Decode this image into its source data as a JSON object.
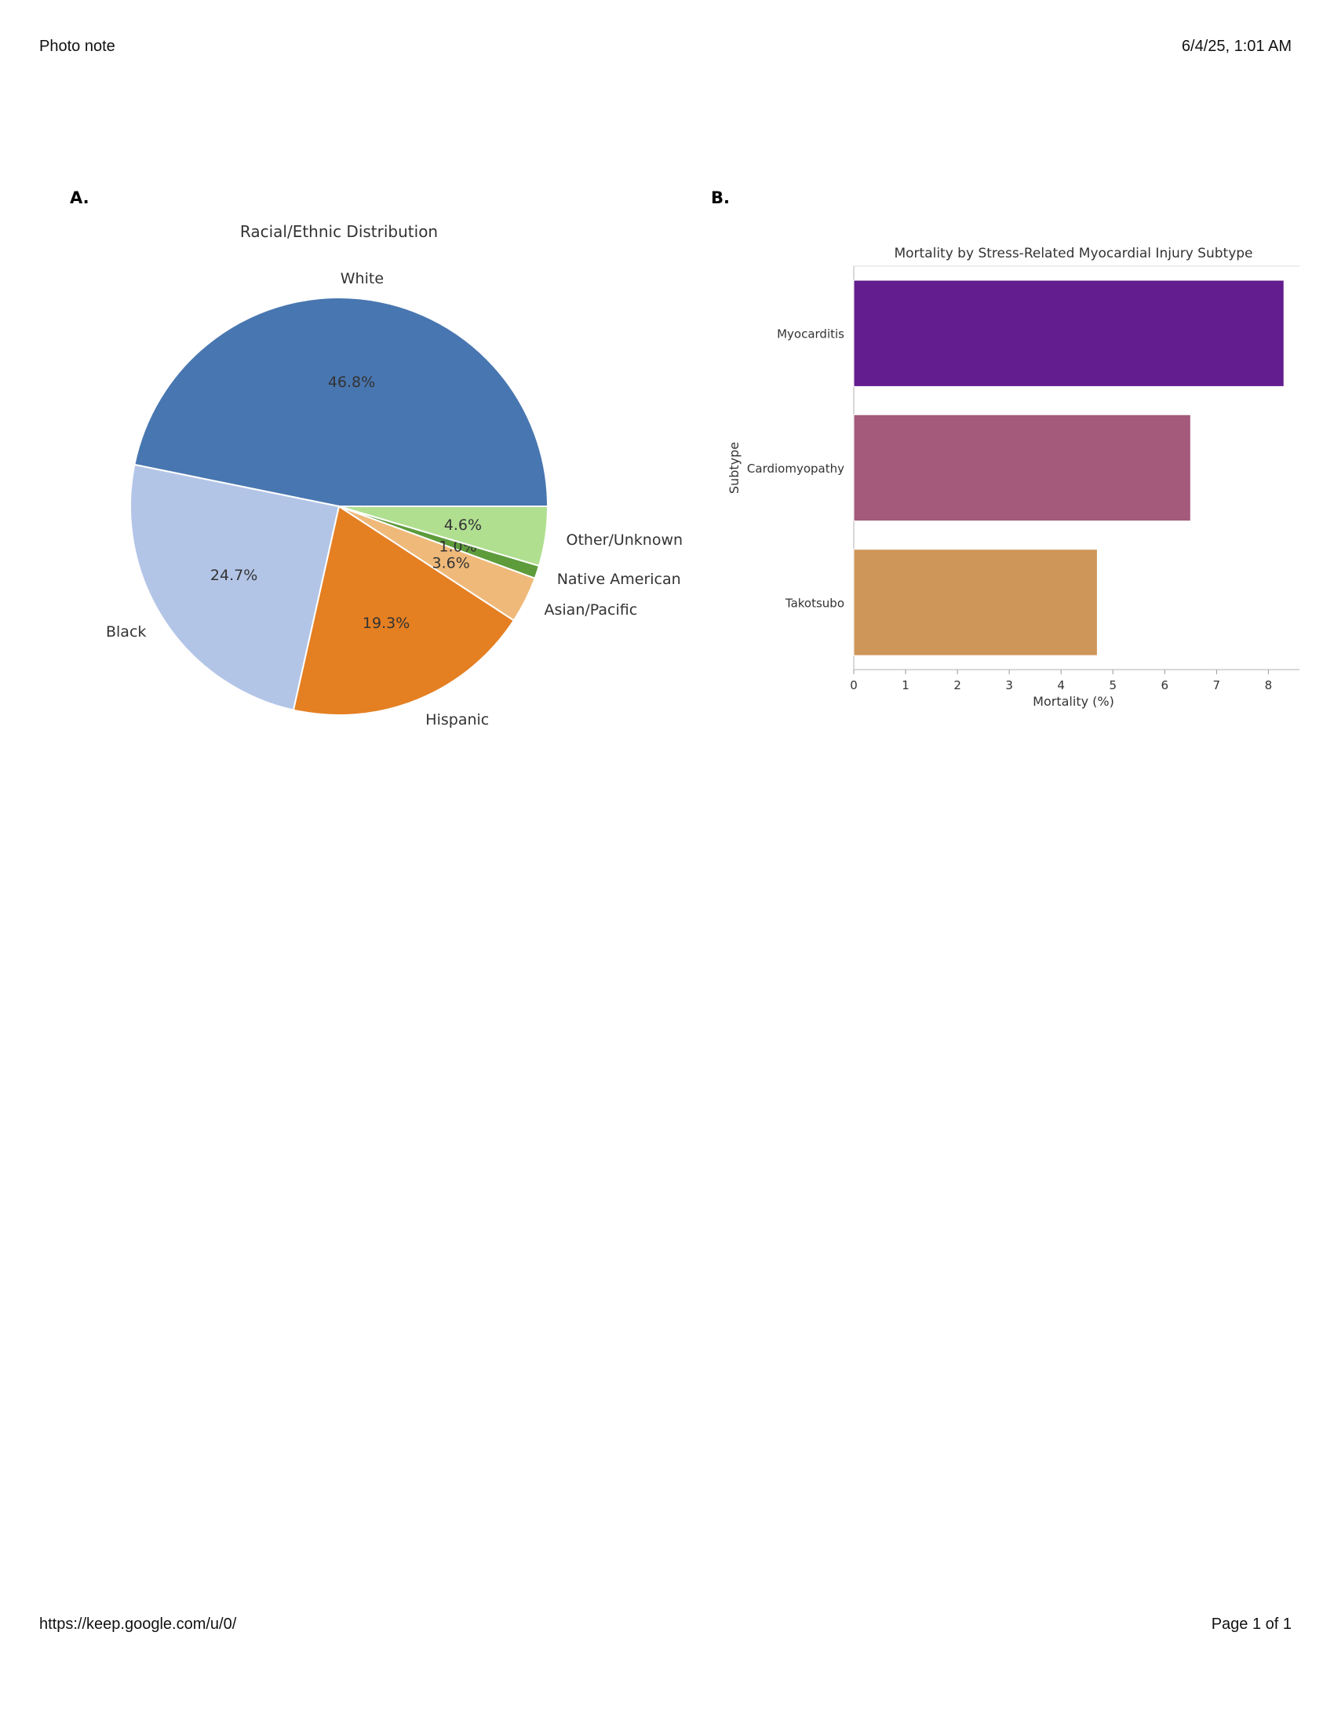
{
  "header": {
    "left": "Photo note",
    "right": "6/4/25, 1:01 AM"
  },
  "footer": {
    "left": "https://keep.google.com/u/0/",
    "right": "Page 1 of 1"
  },
  "panels": {
    "a_label": "A.",
    "b_label": "B."
  },
  "chart_data": [
    {
      "type": "pie",
      "title": "Racial/Ethnic Distribution",
      "slices": [
        {
          "label": "White",
          "value": 46.8,
          "pct_label": "46.8%",
          "color": "#4876b0"
        },
        {
          "label": "Black",
          "value": 24.7,
          "pct_label": "24.7%",
          "color": "#b3c5e7"
        },
        {
          "label": "Hispanic",
          "value": 19.3,
          "pct_label": "19.3%",
          "color": "#e47f22"
        },
        {
          "label": "Asian/Pacific",
          "value": 3.6,
          "pct_label": "3.6%",
          "color": "#efb97a"
        },
        {
          "label": "Native American",
          "value": 1.0,
          "pct_label": "1.0%",
          "color": "#5d9b3b"
        },
        {
          "label": "Other/Unknown",
          "value": 4.6,
          "pct_label": "4.6%",
          "color": "#b0df90"
        }
      ]
    },
    {
      "type": "bar",
      "orientation": "horizontal",
      "title": "Mortality by Stress-Related Myocardial Injury Subtype",
      "xlabel": "Mortality (%)",
      "ylabel": "Subtype",
      "categories": [
        "Myocarditis",
        "Cardiomyopathy",
        "Takotsubo"
      ],
      "values": [
        8.3,
        6.5,
        4.7
      ],
      "colors": [
        "#631d8e",
        "#a45a7b",
        "#cf9659"
      ],
      "xlim": [
        0,
        8.6
      ],
      "xticks": [
        "0",
        "1",
        "2",
        "3",
        "4",
        "5",
        "6",
        "7",
        "8"
      ]
    }
  ]
}
